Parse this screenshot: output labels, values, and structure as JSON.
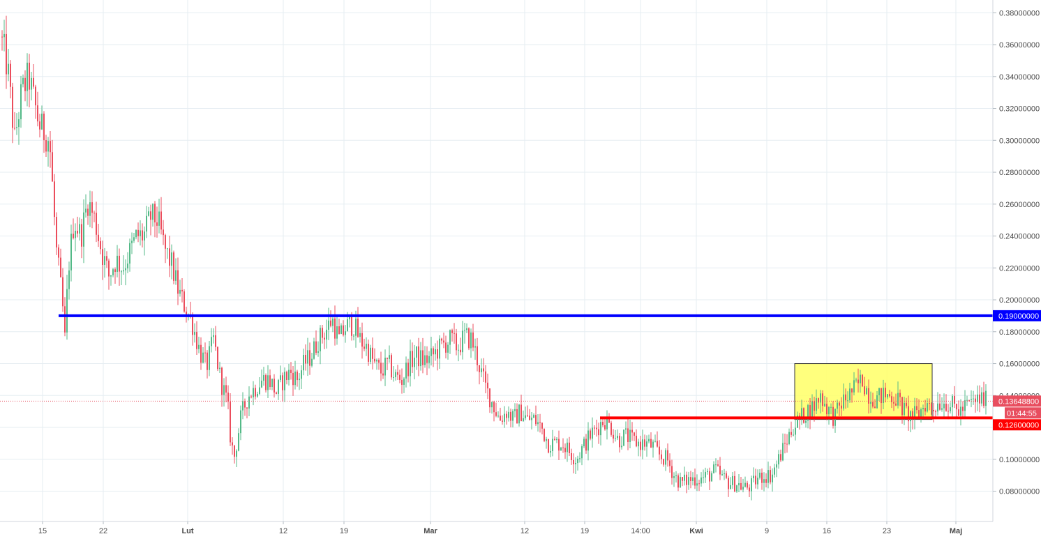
{
  "chart_data": {
    "type": "candlestick",
    "title": "",
    "xlabel": "",
    "ylabel": "",
    "ylim": [
      0.061,
      0.388
    ],
    "grid": true,
    "y_ticks": [
      "0.38000000",
      "0.36000000",
      "0.34000000",
      "0.32000000",
      "0.30000000",
      "0.28000000",
      "0.26000000",
      "0.24000000",
      "0.22000000",
      "0.20000000",
      "0.18000000",
      "0.16000000",
      "0.14000000",
      "0.12000000",
      "0.10000000",
      "0.08000000"
    ],
    "y_tick_values": [
      0.38,
      0.36,
      0.34,
      0.32,
      0.3,
      0.28,
      0.26,
      0.24,
      0.22,
      0.2,
      0.18,
      0.16,
      0.14,
      0.12,
      0.1,
      0.08
    ],
    "x_ticks": [
      "15",
      "22",
      "Lut",
      "12",
      "19",
      "Mar",
      "12",
      "19",
      "14:00",
      "Kwi",
      "9",
      "16",
      "23",
      "Maj"
    ],
    "price_path": [
      [
        0,
        0.365
      ],
      [
        10,
        0.345
      ],
      [
        20,
        0.3
      ],
      [
        30,
        0.33
      ],
      [
        40,
        0.34
      ],
      [
        55,
        0.31
      ],
      [
        70,
        0.3
      ],
      [
        80,
        0.23
      ],
      [
        88,
        0.2
      ],
      [
        92,
        0.175
      ],
      [
        97,
        0.22
      ],
      [
        105,
        0.25
      ],
      [
        115,
        0.24
      ],
      [
        125,
        0.262
      ],
      [
        135,
        0.25
      ],
      [
        145,
        0.23
      ],
      [
        155,
        0.215
      ],
      [
        165,
        0.225
      ],
      [
        175,
        0.22
      ],
      [
        185,
        0.23
      ],
      [
        195,
        0.24
      ],
      [
        205,
        0.24
      ],
      [
        215,
        0.252
      ],
      [
        225,
        0.25
      ],
      [
        235,
        0.232
      ],
      [
        245,
        0.222
      ],
      [
        255,
        0.205
      ],
      [
        265,
        0.195
      ],
      [
        275,
        0.185
      ],
      [
        285,
        0.168
      ],
      [
        295,
        0.158
      ],
      [
        305,
        0.175
      ],
      [
        315,
        0.15
      ],
      [
        325,
        0.135
      ],
      [
        330,
        0.11
      ],
      [
        335,
        0.102
      ],
      [
        345,
        0.128
      ],
      [
        355,
        0.14
      ],
      [
        365,
        0.145
      ],
      [
        375,
        0.15
      ],
      [
        385,
        0.15
      ],
      [
        395,
        0.142
      ],
      [
        405,
        0.15
      ],
      [
        415,
        0.155
      ],
      [
        425,
        0.15
      ],
      [
        435,
        0.16
      ],
      [
        445,
        0.165
      ],
      [
        455,
        0.175
      ],
      [
        465,
        0.18
      ],
      [
        475,
        0.188
      ],
      [
        485,
        0.175
      ],
      [
        495,
        0.183
      ],
      [
        505,
        0.185
      ],
      [
        515,
        0.175
      ],
      [
        525,
        0.17
      ],
      [
        535,
        0.16
      ],
      [
        545,
        0.155
      ],
      [
        555,
        0.16
      ],
      [
        565,
        0.152
      ],
      [
        575,
        0.15
      ],
      [
        585,
        0.16
      ],
      [
        595,
        0.165
      ],
      [
        605,
        0.162
      ],
      [
        615,
        0.163
      ],
      [
        625,
        0.168
      ],
      [
        635,
        0.172
      ],
      [
        645,
        0.175
      ],
      [
        655,
        0.17
      ],
      [
        665,
        0.177
      ],
      [
        675,
        0.175
      ],
      [
        685,
        0.16
      ],
      [
        695,
        0.145
      ],
      [
        705,
        0.135
      ],
      [
        715,
        0.125
      ],
      [
        725,
        0.13
      ],
      [
        735,
        0.125
      ],
      [
        745,
        0.13
      ],
      [
        755,
        0.125
      ],
      [
        765,
        0.125
      ],
      [
        775,
        0.12
      ],
      [
        785,
        0.11
      ],
      [
        795,
        0.11
      ],
      [
        805,
        0.11
      ],
      [
        815,
        0.105
      ],
      [
        825,
        0.1
      ],
      [
        835,
        0.108
      ],
      [
        845,
        0.115
      ],
      [
        855,
        0.12
      ],
      [
        865,
        0.125
      ],
      [
        875,
        0.12
      ],
      [
        885,
        0.112
      ],
      [
        895,
        0.115
      ],
      [
        905,
        0.112
      ],
      [
        915,
        0.11
      ],
      [
        925,
        0.11
      ],
      [
        935,
        0.108
      ],
      [
        945,
        0.102
      ],
      [
        955,
        0.1
      ],
      [
        965,
        0.09
      ],
      [
        975,
        0.085
      ],
      [
        985,
        0.087
      ],
      [
        995,
        0.088
      ],
      [
        1005,
        0.088
      ],
      [
        1015,
        0.09
      ],
      [
        1025,
        0.093
      ],
      [
        1035,
        0.088
      ],
      [
        1045,
        0.085
      ],
      [
        1055,
        0.085
      ],
      [
        1065,
        0.082
      ],
      [
        1075,
        0.083
      ],
      [
        1085,
        0.088
      ],
      [
        1095,
        0.09
      ],
      [
        1105,
        0.09
      ],
      [
        1115,
        0.1
      ],
      [
        1125,
        0.11
      ],
      [
        1135,
        0.12
      ],
      [
        1145,
        0.125
      ],
      [
        1155,
        0.13
      ],
      [
        1165,
        0.133
      ],
      [
        1175,
        0.14
      ],
      [
        1185,
        0.132
      ],
      [
        1195,
        0.126
      ],
      [
        1205,
        0.135
      ],
      [
        1215,
        0.14
      ],
      [
        1225,
        0.145
      ],
      [
        1235,
        0.15
      ],
      [
        1245,
        0.14
      ],
      [
        1255,
        0.138
      ],
      [
        1265,
        0.14
      ],
      [
        1275,
        0.14
      ],
      [
        1285,
        0.138
      ],
      [
        1295,
        0.13
      ],
      [
        1305,
        0.127
      ],
      [
        1315,
        0.128
      ],
      [
        1325,
        0.135
      ],
      [
        1335,
        0.132
      ],
      [
        1345,
        0.136
      ],
      [
        1355,
        0.136
      ],
      [
        1365,
        0.133
      ],
      [
        1375,
        0.13
      ],
      [
        1385,
        0.134
      ],
      [
        1395,
        0.136
      ],
      [
        1405,
        0.138
      ],
      [
        1412,
        0.1365
      ]
    ],
    "horizontal_lines": [
      {
        "label": "0.19000000",
        "value": 0.19,
        "color": "#0000ff"
      },
      {
        "label": "0.12600000",
        "value": 0.126,
        "color": "#ff0000"
      }
    ],
    "current_price": {
      "label": "0.13648800",
      "value": 0.136488,
      "color": "#e84e5f"
    },
    "countdown": "01:44:55",
    "highlight_box": {
      "x_start": 1139,
      "x_end": 1336,
      "y_top": 0.16,
      "y_bottom": 0.125,
      "color": "#ffff66"
    },
    "colors": {
      "up": "#53b987",
      "down": "#eb4d5c",
      "grid": "#e6edf2",
      "axis_text": "#4a4a4a"
    }
  }
}
